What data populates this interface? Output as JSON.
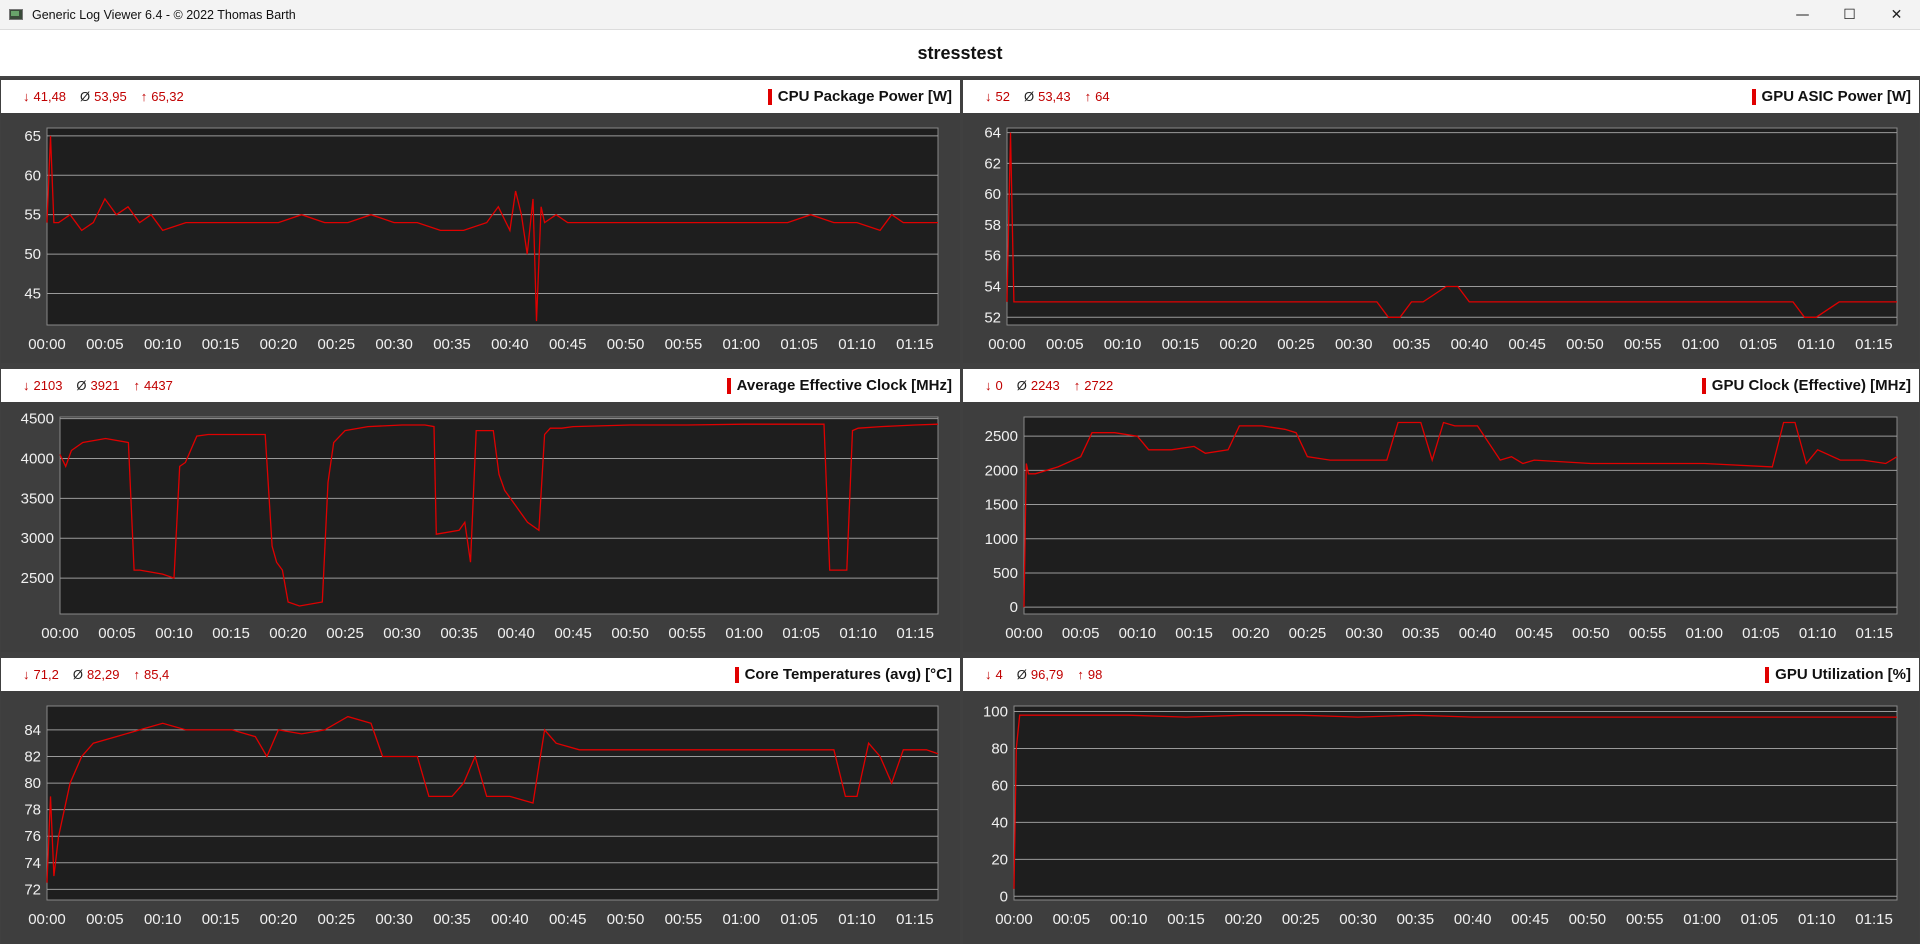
{
  "window": {
    "title": "Generic Log Viewer 6.4 - © 2022 Thomas Barth",
    "minimize_label": "—",
    "maximize_label": "☐",
    "close_label": "✕"
  },
  "page_title": "stresstest",
  "panels": [
    {
      "title": "CPU Package Power [W]",
      "min": "41,48",
      "avg": "53,95",
      "max": "65,32",
      "min_symbol": "↓",
      "avg_symbol": "Ø",
      "max_symbol": "↑"
    },
    {
      "title": "GPU ASIC Power [W]",
      "min": "52",
      "avg": "53,43",
      "max": "64",
      "min_symbol": "↓",
      "avg_symbol": "Ø",
      "max_symbol": "↑"
    },
    {
      "title": "Average Effective Clock [MHz]",
      "min": "2103",
      "avg": "3921",
      "max": "4437",
      "min_symbol": "↓",
      "avg_symbol": "Ø",
      "max_symbol": "↑"
    },
    {
      "title": "GPU Clock (Effective) [MHz]",
      "min": "0",
      "avg": "2243",
      "max": "2722",
      "min_symbol": "↓",
      "avg_symbol": "Ø",
      "max_symbol": "↑"
    },
    {
      "title": "Core Temperatures (avg) [°C]",
      "min": "71,2",
      "avg": "82,29",
      "max": "85,4",
      "min_symbol": "↓",
      "avg_symbol": "Ø",
      "max_symbol": "↑"
    },
    {
      "title": "GPU Utilization [%]",
      "min": "4",
      "avg": "96,79",
      "max": "98",
      "min_symbol": "↓",
      "avg_symbol": "Ø",
      "max_symbol": "↑"
    }
  ],
  "colors": {
    "line": "#e00000",
    "plot_bg": "#1e1e1e",
    "grid": "#9a9a9a",
    "panel_bg": "#3e3e3e"
  },
  "chart_data": [
    {
      "type": "line",
      "title": "CPU Package Power [W]",
      "x_ticks": [
        "00:00",
        "00:05",
        "00:10",
        "00:15",
        "00:20",
        "00:25",
        "00:30",
        "00:35",
        "00:40",
        "00:45",
        "00:50",
        "00:55",
        "01:00",
        "01:05",
        "01:10",
        "01:15"
      ],
      "y_ticks": [
        45,
        50,
        55,
        60,
        65
      ],
      "ylim": [
        41,
        66
      ],
      "xlim": [
        0,
        77
      ],
      "series": [
        {
          "x": [
            0,
            0.3,
            0.6,
            1,
            2,
            3,
            4,
            5,
            6,
            7,
            8,
            9,
            10,
            12,
            14,
            16,
            18,
            20,
            22,
            24,
            26,
            28,
            30,
            32,
            34,
            36,
            38,
            39,
            40,
            40.5,
            41,
            41.5,
            42,
            42.3,
            42.7,
            43,
            44,
            45,
            46,
            48,
            50,
            52,
            54,
            56,
            58,
            60,
            62,
            64,
            66,
            68,
            70,
            72,
            73,
            74,
            75,
            76,
            77
          ],
          "y": [
            54,
            65,
            54,
            54,
            55,
            53,
            54,
            57,
            55,
            56,
            54,
            55,
            53,
            54,
            54,
            54,
            54,
            54,
            55,
            54,
            54,
            55,
            54,
            54,
            53,
            53,
            54,
            56,
            53,
            58,
            55,
            50,
            57,
            41.5,
            56,
            54,
            55,
            54,
            54,
            54,
            54,
            54,
            54,
            54,
            54,
            54,
            54,
            54,
            55,
            54,
            54,
            53,
            55,
            54,
            54,
            54,
            54
          ]
        }
      ]
    },
    {
      "type": "line",
      "title": "GPU ASIC Power [W]",
      "x_ticks": [
        "00:00",
        "00:05",
        "00:10",
        "00:15",
        "00:20",
        "00:25",
        "00:30",
        "00:35",
        "00:40",
        "00:45",
        "00:50",
        "00:55",
        "01:00",
        "01:05",
        "01:10",
        "01:15"
      ],
      "y_ticks": [
        52,
        54,
        56,
        58,
        60,
        62,
        64
      ],
      "ylim": [
        51.5,
        64.3
      ],
      "xlim": [
        0,
        77
      ],
      "series": [
        {
          "x": [
            0,
            0.3,
            0.6,
            1,
            5,
            10,
            15,
            20,
            25,
            30,
            32,
            33,
            34,
            35,
            36,
            38,
            39,
            40,
            42,
            45,
            50,
            55,
            60,
            65,
            68,
            69,
            70,
            72,
            75,
            77
          ],
          "y": [
            53,
            64,
            53,
            53,
            53,
            53,
            53,
            53,
            53,
            53,
            53,
            52,
            52,
            53,
            53,
            54,
            54,
            53,
            53,
            53,
            53,
            53,
            53,
            53,
            53,
            52,
            52,
            53,
            53,
            53
          ]
        }
      ]
    },
    {
      "type": "line",
      "title": "Average Effective Clock [MHz]",
      "x_ticks": [
        "00:00",
        "00:05",
        "00:10",
        "00:15",
        "00:20",
        "00:25",
        "00:30",
        "00:35",
        "00:40",
        "00:45",
        "00:50",
        "00:55",
        "01:00",
        "01:05",
        "01:10",
        "01:15"
      ],
      "y_ticks": [
        2500,
        3000,
        3500,
        4000,
        4500
      ],
      "ylim": [
        2050,
        4520
      ],
      "xlim": [
        0,
        77
      ],
      "series": [
        {
          "x": [
            0,
            0.5,
            1,
            2,
            4,
            6,
            6.5,
            7,
            9,
            10,
            10.5,
            11,
            12,
            13,
            15,
            18,
            18.6,
            19,
            19.5,
            20,
            21,
            23,
            23.5,
            24,
            25,
            27,
            30,
            32,
            32.8,
            33,
            35,
            35.5,
            36,
            36.5,
            38,
            38.5,
            39,
            40,
            41,
            42,
            42.5,
            43,
            44,
            45,
            50,
            55,
            60,
            66,
            67,
            67.5,
            69,
            69.5,
            70,
            72,
            75,
            77
          ],
          "y": [
            4050,
            3900,
            4100,
            4200,
            4250,
            4200,
            2600,
            2600,
            2550,
            2500,
            3900,
            3950,
            4280,
            4300,
            4300,
            4300,
            2900,
            2700,
            2600,
            2200,
            2150,
            2200,
            3700,
            4200,
            4350,
            4400,
            4420,
            4420,
            4400,
            3050,
            3100,
            3200,
            2700,
            4350,
            4350,
            3800,
            3600,
            3400,
            3200,
            3100,
            4300,
            4380,
            4380,
            4400,
            4420,
            4420,
            4430,
            4430,
            4430,
            2600,
            2600,
            4350,
            4380,
            4400,
            4420,
            4430
          ]
        }
      ]
    },
    {
      "type": "line",
      "title": "GPU Clock (Effective) [MHz]",
      "x_ticks": [
        "00:00",
        "00:05",
        "00:10",
        "00:15",
        "00:20",
        "00:25",
        "00:30",
        "00:35",
        "00:40",
        "00:45",
        "00:50",
        "00:55",
        "01:00",
        "01:05",
        "01:10",
        "01:15"
      ],
      "y_ticks": [
        0,
        500,
        1000,
        1500,
        2000,
        2500
      ],
      "ylim": [
        -100,
        2780
      ],
      "xlim": [
        0,
        77
      ],
      "series": [
        {
          "x": [
            0,
            0.2,
            0.4,
            1,
            3,
            5,
            6,
            8,
            10,
            11,
            13,
            15,
            16,
            18,
            19,
            21,
            23,
            24,
            25,
            27,
            30,
            32,
            33,
            35,
            36,
            37,
            38,
            40,
            42,
            43,
            44,
            45,
            50,
            55,
            60,
            66,
            67,
            68,
            69,
            70,
            72,
            74,
            76,
            77
          ],
          "y": [
            0,
            2100,
            1950,
            1950,
            2050,
            2200,
            2550,
            2550,
            2500,
            2300,
            2300,
            2350,
            2250,
            2300,
            2650,
            2650,
            2600,
            2550,
            2200,
            2150,
            2150,
            2150,
            2700,
            2700,
            2150,
            2700,
            2650,
            2650,
            2150,
            2200,
            2100,
            2150,
            2100,
            2100,
            2100,
            2050,
            2700,
            2700,
            2100,
            2300,
            2150,
            2150,
            2100,
            2200
          ]
        }
      ]
    },
    {
      "type": "line",
      "title": "Core Temperatures (avg) [°C]",
      "x_ticks": [
        "00:00",
        "00:05",
        "00:10",
        "00:15",
        "00:20",
        "00:25",
        "00:30",
        "00:35",
        "00:40",
        "00:45",
        "00:50",
        "00:55",
        "01:00",
        "01:05",
        "01:10",
        "01:15"
      ],
      "y_ticks": [
        72,
        74,
        76,
        78,
        80,
        82,
        84
      ],
      "ylim": [
        71.2,
        85.8
      ],
      "xlim": [
        0,
        77
      ],
      "series": [
        {
          "x": [
            0,
            0.3,
            0.6,
            1,
            2,
            3,
            4,
            6,
            8,
            10,
            12,
            14,
            16,
            18,
            19,
            20,
            22,
            24,
            26,
            28,
            29,
            30,
            32,
            33,
            35,
            36,
            37,
            38,
            40,
            42,
            43,
            44,
            46,
            50,
            55,
            60,
            65,
            68,
            69,
            70,
            71,
            72,
            73,
            74,
            76,
            77
          ],
          "y": [
            72.5,
            79,
            73,
            76,
            80,
            82,
            83,
            83.5,
            84,
            84.5,
            84,
            84,
            84,
            83.5,
            82,
            84,
            83.7,
            84,
            85,
            84.5,
            82,
            82,
            82,
            79,
            79,
            80,
            82,
            79,
            79,
            78.5,
            84,
            83,
            82.5,
            82.5,
            82.5,
            82.5,
            82.5,
            82.5,
            79,
            79,
            83,
            82,
            80,
            82.5,
            82.5,
            82.2
          ]
        }
      ]
    },
    {
      "type": "line",
      "title": "GPU Utilization [%]",
      "x_ticks": [
        "00:00",
        "00:05",
        "00:10",
        "00:15",
        "00:20",
        "00:25",
        "00:30",
        "00:35",
        "00:40",
        "00:45",
        "00:50",
        "00:55",
        "01:00",
        "01:05",
        "01:10",
        "01:15"
      ],
      "y_ticks": [
        0,
        20,
        40,
        60,
        80,
        100
      ],
      "ylim": [
        -2,
        103
      ],
      "xlim": [
        0,
        77
      ],
      "series": [
        {
          "x": [
            0,
            0.2,
            0.5,
            1,
            5,
            10,
            15,
            20,
            25,
            30,
            35,
            40,
            45,
            50,
            55,
            60,
            65,
            70,
            75,
            77
          ],
          "y": [
            4,
            80,
            98,
            98,
            98,
            98,
            97,
            98,
            98,
            97,
            98,
            97,
            97,
            97,
            97,
            97,
            97,
            97,
            97,
            97
          ]
        }
      ]
    }
  ]
}
